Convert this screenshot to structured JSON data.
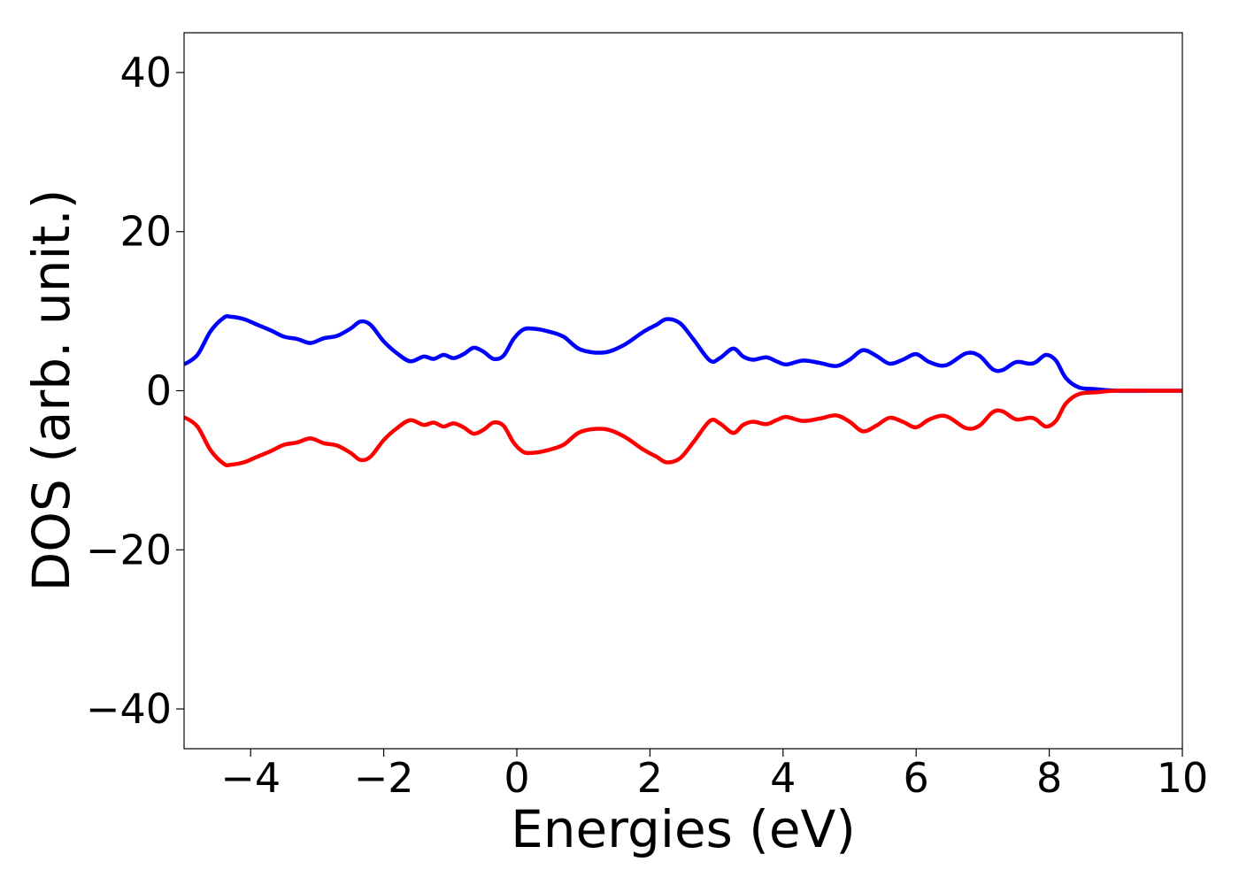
{
  "chart_data": {
    "type": "line",
    "xlabel": "Energies (eV)",
    "ylabel": "DOS (arb. unit.)",
    "xlim": [
      -5,
      10
    ],
    "ylim": [
      -45,
      45
    ],
    "xticks": [
      -4,
      -2,
      0,
      2,
      4,
      6,
      8,
      10
    ],
    "yticks": [
      -40,
      -20,
      0,
      20,
      40
    ],
    "xtick_labels": [
      "−4",
      "−2",
      "0",
      "2",
      "4",
      "6",
      "8",
      "10"
    ],
    "ytick_labels": [
      "−40",
      "−20",
      "0",
      "20",
      "40"
    ],
    "grid": false,
    "colors": {
      "up": "#0000ff",
      "down": "#ff0000"
    },
    "series": [
      {
        "color": "#0000ff",
        "x": [
          -5.0,
          -4.8,
          -4.6,
          -4.4,
          -4.3,
          -4.1,
          -3.9,
          -3.7,
          -3.5,
          -3.3,
          -3.1,
          -2.9,
          -2.7,
          -2.5,
          -2.35,
          -2.2,
          -2.0,
          -1.8,
          -1.6,
          -1.4,
          -1.25,
          -1.1,
          -0.95,
          -0.8,
          -0.65,
          -0.5,
          -0.35,
          -0.2,
          -0.05,
          0.1,
          0.25,
          0.45,
          0.7,
          0.95,
          1.3,
          1.6,
          1.9,
          2.1,
          2.25,
          2.45,
          2.65,
          2.9,
          3.05,
          3.25,
          3.4,
          3.55,
          3.75,
          3.9,
          4.05,
          4.3,
          4.55,
          4.8,
          5.0,
          5.2,
          5.4,
          5.6,
          5.8,
          6.0,
          6.2,
          6.45,
          6.75,
          6.95,
          7.15,
          7.3,
          7.5,
          7.7,
          7.8,
          7.95,
          8.1,
          8.25,
          8.45,
          8.7,
          9.0,
          9.5,
          10.0
        ],
        "y": [
          3.3,
          4.5,
          7.5,
          9.2,
          9.3,
          9.0,
          8.3,
          7.6,
          6.8,
          6.5,
          6.0,
          6.6,
          6.9,
          7.8,
          8.7,
          8.3,
          6.2,
          4.7,
          3.7,
          4.3,
          4.0,
          4.5,
          4.1,
          4.6,
          5.4,
          4.9,
          4.0,
          4.4,
          6.5,
          7.7,
          7.8,
          7.5,
          6.8,
          5.2,
          4.8,
          5.7,
          7.4,
          8.3,
          9.0,
          8.5,
          6.5,
          3.8,
          4.1,
          5.3,
          4.3,
          3.9,
          4.2,
          3.7,
          3.3,
          3.8,
          3.5,
          3.1,
          3.9,
          5.1,
          4.4,
          3.4,
          3.9,
          4.6,
          3.6,
          3.2,
          4.7,
          4.4,
          2.7,
          2.6,
          3.6,
          3.4,
          3.6,
          4.5,
          3.8,
          1.6,
          0.4,
          0.2,
          0.0,
          0.0,
          0.0
        ]
      },
      {
        "color": "#ff0000",
        "x": [
          -5.0,
          -4.8,
          -4.6,
          -4.4,
          -4.3,
          -4.1,
          -3.9,
          -3.7,
          -3.5,
          -3.3,
          -3.1,
          -2.9,
          -2.7,
          -2.5,
          -2.35,
          -2.2,
          -2.0,
          -1.8,
          -1.6,
          -1.4,
          -1.25,
          -1.1,
          -0.95,
          -0.8,
          -0.65,
          -0.5,
          -0.35,
          -0.2,
          -0.05,
          0.1,
          0.25,
          0.45,
          0.7,
          0.95,
          1.3,
          1.6,
          1.9,
          2.1,
          2.25,
          2.45,
          2.65,
          2.9,
          3.05,
          3.25,
          3.4,
          3.55,
          3.75,
          3.9,
          4.05,
          4.3,
          4.55,
          4.8,
          5.0,
          5.2,
          5.4,
          5.6,
          5.8,
          6.0,
          6.2,
          6.45,
          6.75,
          6.95,
          7.15,
          7.3,
          7.5,
          7.7,
          7.8,
          7.95,
          8.1,
          8.25,
          8.45,
          8.7,
          9.0,
          9.5,
          10.0
        ],
        "y": [
          -3.3,
          -4.5,
          -7.5,
          -9.2,
          -9.3,
          -9.0,
          -8.3,
          -7.6,
          -6.8,
          -6.5,
          -6.0,
          -6.6,
          -6.9,
          -7.8,
          -8.7,
          -8.3,
          -6.2,
          -4.7,
          -3.7,
          -4.3,
          -4.0,
          -4.5,
          -4.1,
          -4.6,
          -5.4,
          -4.9,
          -4.0,
          -4.4,
          -6.5,
          -7.7,
          -7.8,
          -7.5,
          -6.8,
          -5.2,
          -4.8,
          -5.7,
          -7.4,
          -8.3,
          -9.0,
          -8.5,
          -6.5,
          -3.8,
          -4.1,
          -5.3,
          -4.3,
          -3.9,
          -4.2,
          -3.7,
          -3.3,
          -3.8,
          -3.5,
          -3.1,
          -3.9,
          -5.1,
          -4.4,
          -3.4,
          -3.9,
          -4.6,
          -3.6,
          -3.2,
          -4.7,
          -4.4,
          -2.7,
          -2.6,
          -3.6,
          -3.4,
          -3.6,
          -4.5,
          -3.8,
          -1.6,
          -0.4,
          -0.2,
          0.0,
          0.0,
          0.0
        ]
      }
    ]
  }
}
